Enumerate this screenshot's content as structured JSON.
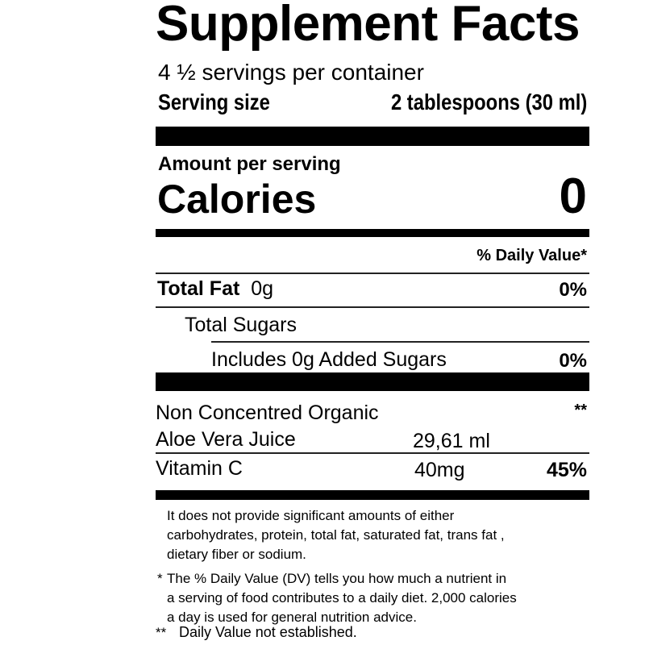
{
  "title": "Supplement Facts",
  "servings_per_container": "4 ½ servings per container",
  "serving_size": {
    "label": "Serving size",
    "value": "2 tablespoons (30 ml)"
  },
  "amount_per_serving": "Amount per serving",
  "calories": {
    "label": "Calories",
    "value": "0"
  },
  "daily_value_header": "% Daily Value*",
  "nutrients": [
    {
      "label": "Total Fat",
      "amount": "0g",
      "dv": "0%"
    },
    {
      "label": "Total Sugars"
    },
    {
      "label": "Includes 0g Added Sugars",
      "dv": "0%"
    }
  ],
  "ingredients": [
    {
      "label_line1": "Non Concentred Organic",
      "label_line2": "Aloe Vera Juice",
      "amount": "29,61 ml",
      "dv": "**"
    },
    {
      "label": "Vitamin C",
      "amount": "40mg",
      "dv": "45%"
    }
  ],
  "footnotes": {
    "note1": [
      "It does not provide significant amounts of either",
      "carbohydrates, protein, total fat, saturated fat, trans fat ,",
      "dietary fiber or sodium."
    ],
    "note2_marker": "*",
    "note2": [
      "The % Daily Value (DV) tells you how much a nutrient in",
      "a serving of food contributes to a daily diet. 2,000 calories",
      "a day is used for general nutrition advice."
    ],
    "note3_marker": "**",
    "note3": "Daily Value not established."
  }
}
